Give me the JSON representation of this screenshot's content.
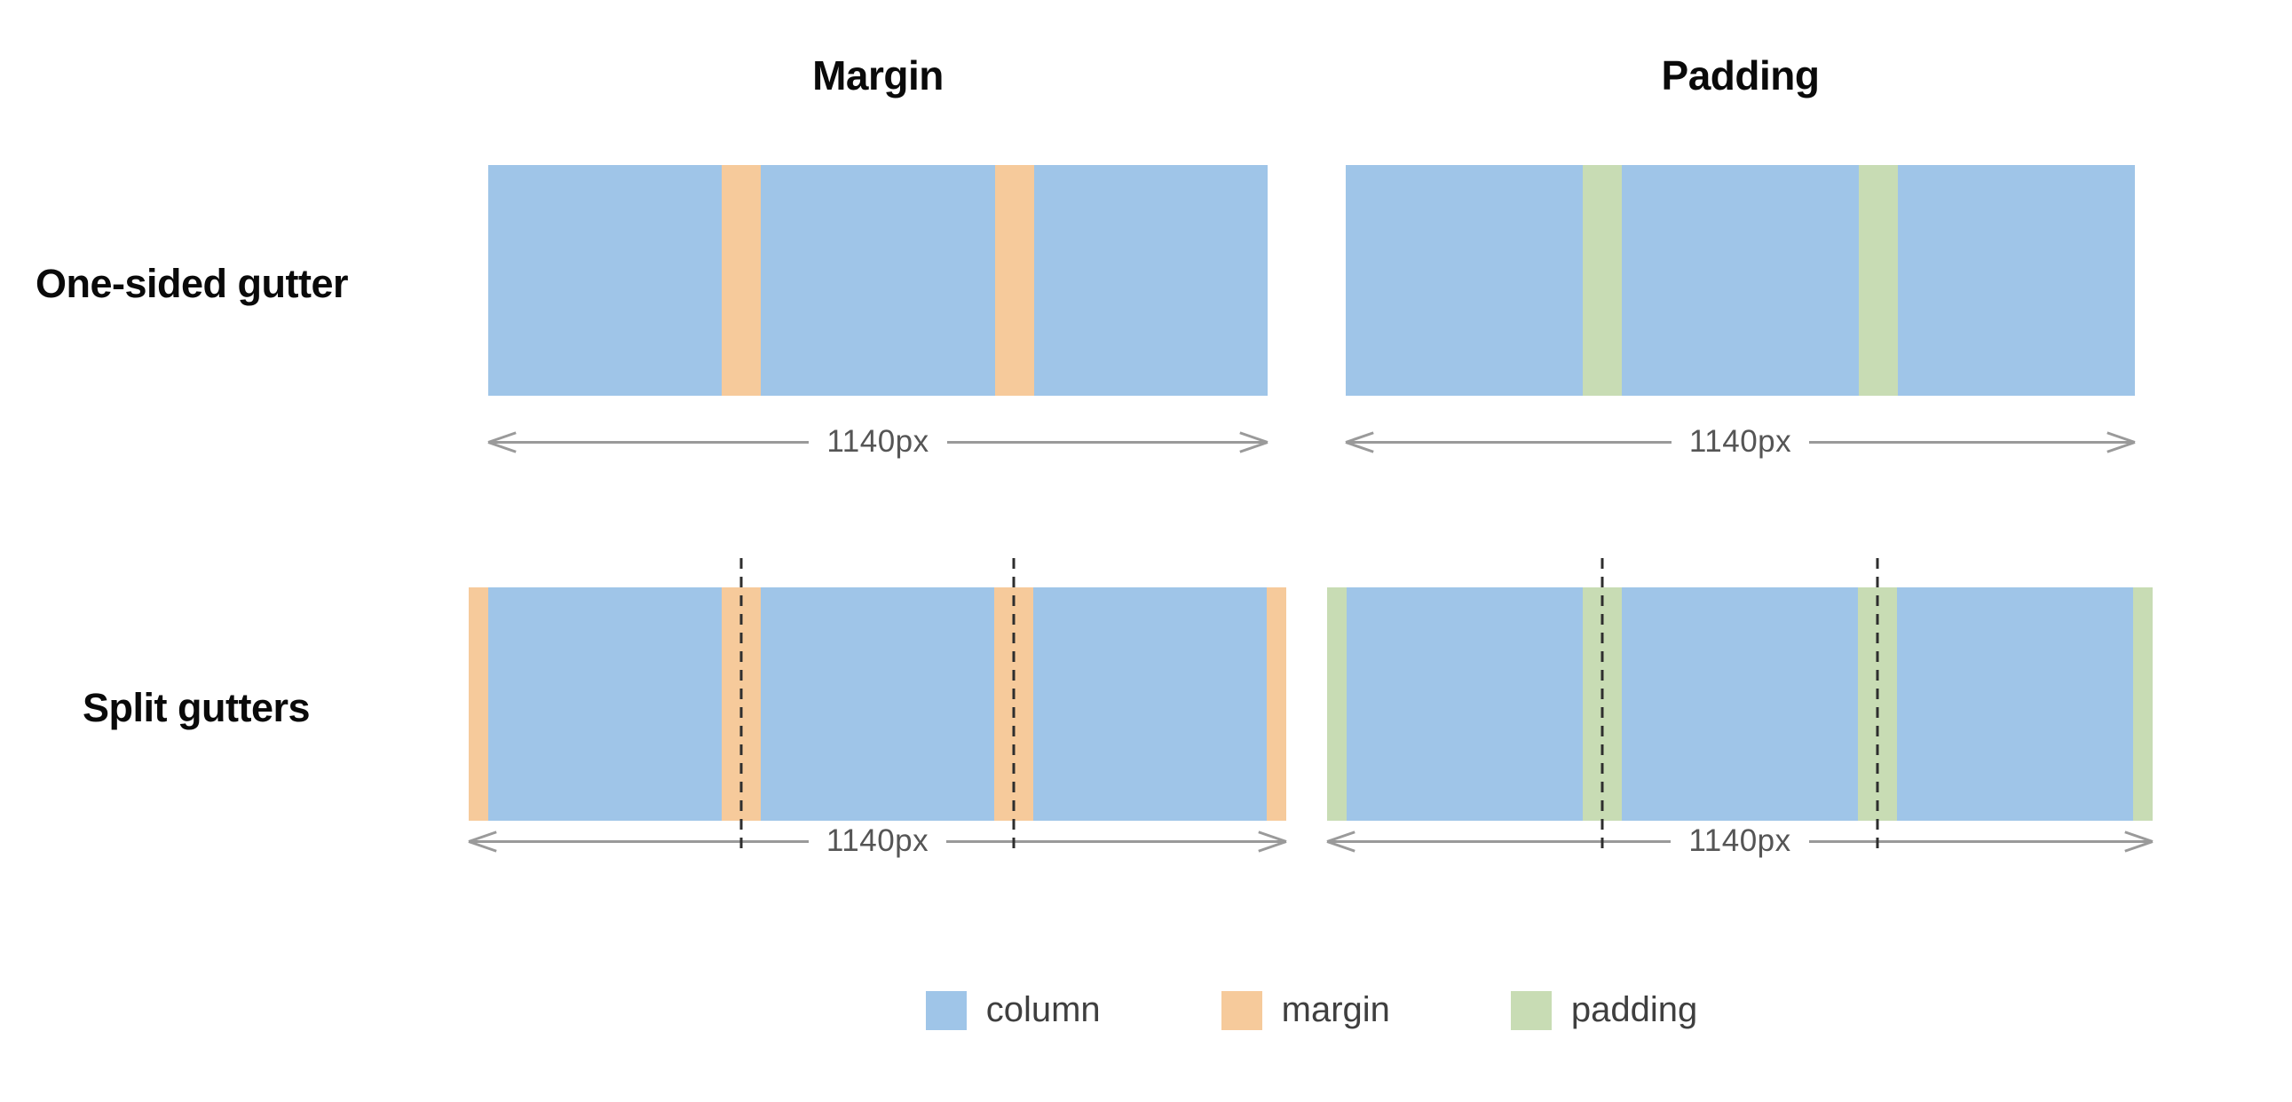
{
  "column_headers": {
    "margin": "Margin",
    "padding": "Padding"
  },
  "row_labels": {
    "one_sided": "One-sided gutter",
    "split": "Split gutters"
  },
  "dimension": {
    "width_label": "1140px"
  },
  "grid": {
    "columns_per_block": 3,
    "gutters_per_one_sided_block": 2,
    "gutters_per_split_block": 2,
    "half_gutters_per_split_block": 2
  },
  "legend": {
    "items": [
      {
        "label": "column",
        "color": "#9fc5e8"
      },
      {
        "label": "margin",
        "color": "#f6ca9b"
      },
      {
        "label": "padding",
        "color": "#c8dcb4"
      }
    ]
  },
  "colors": {
    "column": "#9fc5e8",
    "margin": "#f6ca9b",
    "padding": "#c8dcb4",
    "arrow": "#9a9a9a",
    "dimension_text": "#555555",
    "dashed_line": "#2e2e2e",
    "heading_text": "#0a0a0a",
    "legend_text": "#3f3f3f",
    "background": "#ffffff"
  }
}
